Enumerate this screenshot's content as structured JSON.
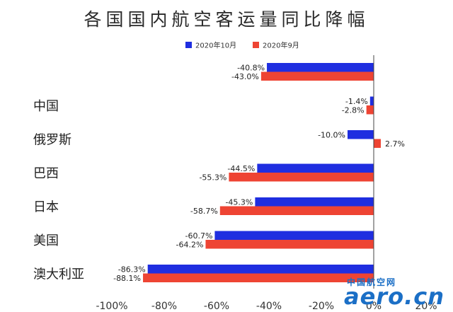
{
  "chart_data": {
    "type": "bar",
    "orientation": "horizontal",
    "title": "各国国内航空客运量同比降幅",
    "categories": [
      "",
      "中国",
      "俄罗斯",
      "巴西",
      "日本",
      "美国",
      "澳大利亚"
    ],
    "series": [
      {
        "name": "2020年10月",
        "color": "#1f2ee0",
        "values": [
          -40.8,
          -1.4,
          -10.0,
          -44.5,
          -45.3,
          -60.7,
          -86.3
        ],
        "labels": [
          "-40.8%",
          "-1.4%",
          "-10.0%",
          "-44.5%",
          "-45.3%",
          "-60.7%",
          "-86.3%"
        ]
      },
      {
        "name": "2020年9月",
        "color": "#ee4433",
        "values": [
          -43.0,
          -2.8,
          2.7,
          -55.3,
          -58.7,
          -64.2,
          -88.1
        ],
        "labels": [
          "-43.0%",
          "-2.8%",
          "2.7%",
          "-55.3%",
          "-58.7%",
          "-64.2%",
          "-88.1%"
        ]
      }
    ],
    "xlim": [
      -100,
      20
    ],
    "xticks": [
      -100,
      -80,
      -60,
      -40,
      -20,
      0,
      20
    ],
    "xtick_labels": [
      "-100%",
      "-80%",
      "-60%",
      "-40%",
      "-20%",
      "0%",
      "20%"
    ],
    "legend_position": "top-center",
    "grid": false
  },
  "watermark": {
    "text_cn": "中国航空网",
    "text_en": "aero.cn"
  }
}
